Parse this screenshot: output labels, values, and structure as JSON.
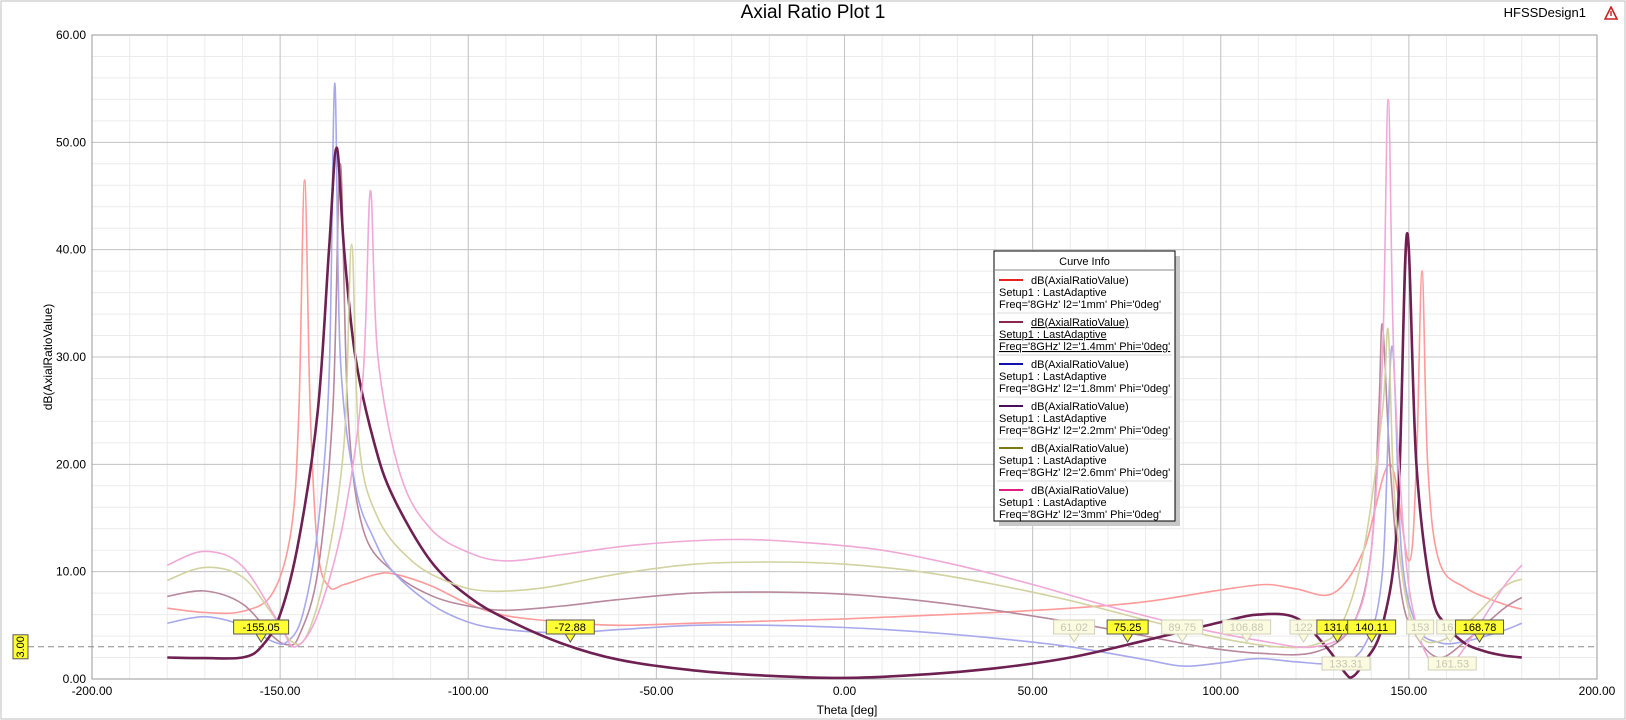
{
  "header": {
    "title": "Axial Ratio Plot 1",
    "design_name": "HFSSDesign1"
  },
  "legend": {
    "title": "Curve Info"
  },
  "chart_data": {
    "type": "line",
    "xlabel": "Theta [deg]",
    "ylabel": "dB(AxialRatioValue)",
    "xlim": [
      -200,
      200
    ],
    "ylim": [
      0,
      60
    ],
    "xticks": [
      -200,
      -150,
      -100,
      -50,
      0,
      50,
      100,
      150,
      200
    ],
    "yticks": [
      0,
      10,
      20,
      30,
      40,
      50,
      60
    ],
    "xtick_labels": [
      "-200.00",
      "-150.00",
      "-100.00",
      "-50.00",
      "0.00",
      "50.00",
      "100.00",
      "150.00",
      "200.00"
    ],
    "ytick_labels": [
      "0.00",
      "10.00",
      "20.00",
      "30.00",
      "40.00",
      "50.00",
      "60.00"
    ],
    "grid": true,
    "legend_position": "center-right",
    "reference_line": {
      "y": 3,
      "label": "3.00"
    },
    "series": [
      {
        "name": "dB(AxialRatioValue)",
        "setup": "Setup1 : LastAdaptive",
        "params": "Freq='8GHz' l2='1mm' Phi='0deg'",
        "color": "#ff9a9a",
        "points": [
          [
            -180,
            6.6
          ],
          [
            -170,
            6.2
          ],
          [
            -160,
            6.3
          ],
          [
            -152,
            8
          ],
          [
            -147,
            14
          ],
          [
            -145,
            25
          ],
          [
            -143.5,
            46.5
          ],
          [
            -142,
            25
          ],
          [
            -140,
            12
          ],
          [
            -137,
            8.6
          ],
          [
            -133,
            8.8
          ],
          [
            -125,
            9.7
          ],
          [
            -120,
            9.8
          ],
          [
            -110,
            8.7
          ],
          [
            -100,
            7
          ],
          [
            -90,
            5.9
          ],
          [
            -75,
            5.3
          ],
          [
            -60,
            5
          ],
          [
            -40,
            5.2
          ],
          [
            -20,
            5.4
          ],
          [
            0,
            5.6
          ],
          [
            20,
            5.9
          ],
          [
            40,
            6.2
          ],
          [
            60,
            6.6
          ],
          [
            80,
            7.2
          ],
          [
            100,
            8.3
          ],
          [
            112,
            8.8
          ],
          [
            120,
            8.4
          ],
          [
            130,
            8
          ],
          [
            138,
            12
          ],
          [
            145,
            20
          ],
          [
            150,
            11
          ],
          [
            152,
            20
          ],
          [
            153.5,
            38
          ],
          [
            155,
            20
          ],
          [
            158,
            11
          ],
          [
            165,
            8.5
          ],
          [
            175,
            7
          ],
          [
            180,
            6.5
          ]
        ]
      },
      {
        "name": "dB(AxialRatioValue)",
        "setup": "Setup1 : LastAdaptive",
        "params": "Freq='8GHz' l2='1.4mm' Phi='0deg'",
        "color": "#b8889c",
        "points": [
          [
            -180,
            7.7
          ],
          [
            -170,
            8.2
          ],
          [
            -160,
            7
          ],
          [
            -152,
            4
          ],
          [
            -148,
            3.2
          ],
          [
            -145,
            4
          ],
          [
            -140,
            10
          ],
          [
            -136,
            25
          ],
          [
            -134,
            48
          ],
          [
            -132,
            25
          ],
          [
            -128,
            14
          ],
          [
            -120,
            10
          ],
          [
            -110,
            7.8
          ],
          [
            -100,
            6.8
          ],
          [
            -90,
            6.4
          ],
          [
            -75,
            6.8
          ],
          [
            -60,
            7.4
          ],
          [
            -40,
            8
          ],
          [
            -20,
            8.1
          ],
          [
            0,
            7.9
          ],
          [
            20,
            7.3
          ],
          [
            40,
            6.4
          ],
          [
            60,
            5.3
          ],
          [
            80,
            4
          ],
          [
            95,
            3
          ],
          [
            110,
            2.4
          ],
          [
            125,
            2.5
          ],
          [
            135,
            5
          ],
          [
            140,
            12
          ],
          [
            142,
            25
          ],
          [
            143,
            33
          ],
          [
            145,
            20
          ],
          [
            148,
            8
          ],
          [
            152,
            4
          ],
          [
            158,
            2
          ],
          [
            165,
            3.5
          ],
          [
            175,
            6.5
          ],
          [
            180,
            7.6
          ]
        ]
      },
      {
        "name": "dB(AxialRatioValue)",
        "setup": "Setup1 : LastAdaptive",
        "params": "Freq='8GHz' l2='1.8mm' Phi='0deg'",
        "color": "#a8a8ec",
        "points": [
          [
            -180,
            5.2
          ],
          [
            -170,
            5.8
          ],
          [
            -160,
            5
          ],
          [
            -152,
            3.5
          ],
          [
            -148,
            3.5
          ],
          [
            -144,
            6
          ],
          [
            -140,
            14
          ],
          [
            -137,
            28
          ],
          [
            -135.5,
            55.5
          ],
          [
            -134,
            30
          ],
          [
            -130,
            18
          ],
          [
            -125,
            13
          ],
          [
            -120,
            10
          ],
          [
            -110,
            7
          ],
          [
            -100,
            5.3
          ],
          [
            -90,
            4.6
          ],
          [
            -75,
            4.3
          ],
          [
            -60,
            4.6
          ],
          [
            -40,
            5
          ],
          [
            -20,
            5
          ],
          [
            0,
            4.8
          ],
          [
            20,
            4.4
          ],
          [
            40,
            3.8
          ],
          [
            60,
            3
          ],
          [
            80,
            1.8
          ],
          [
            90,
            1.2
          ],
          [
            100,
            1.5
          ],
          [
            110,
            1.9
          ],
          [
            120,
            1.6
          ],
          [
            130,
            1.5
          ],
          [
            138,
            3
          ],
          [
            143,
            10
          ],
          [
            145.5,
            31
          ],
          [
            148,
            12
          ],
          [
            152,
            5
          ],
          [
            158,
            3.4
          ],
          [
            165,
            3.5
          ],
          [
            175,
            4.5
          ],
          [
            180,
            5.2
          ]
        ]
      },
      {
        "name": "dB(AxialRatioValue)",
        "setup": "Setup1 : LastAdaptive",
        "params": "Freq='8GHz' l2='2.2mm' Phi='0deg'",
        "color": "#6e2052",
        "points": [
          [
            -180,
            2
          ],
          [
            -170,
            1.95
          ],
          [
            -160,
            2
          ],
          [
            -155,
            3
          ],
          [
            -150,
            6
          ],
          [
            -145,
            13
          ],
          [
            -140,
            25
          ],
          [
            -137,
            40
          ],
          [
            -135,
            49.5
          ],
          [
            -133,
            40
          ],
          [
            -130,
            30
          ],
          [
            -125,
            22
          ],
          [
            -120,
            17
          ],
          [
            -110,
            11
          ],
          [
            -100,
            7.7
          ],
          [
            -90,
            5.6
          ],
          [
            -75,
            3.3
          ],
          [
            -60,
            1.8
          ],
          [
            -40,
            0.8
          ],
          [
            -20,
            0.3
          ],
          [
            0,
            0.1
          ],
          [
            20,
            0.4
          ],
          [
            40,
            1
          ],
          [
            60,
            2
          ],
          [
            80,
            3.6
          ],
          [
            100,
            5.3
          ],
          [
            110,
            6
          ],
          [
            120,
            5.7
          ],
          [
            128,
            3
          ],
          [
            133,
            0.6
          ],
          [
            135,
            0.2
          ],
          [
            138,
            1.5
          ],
          [
            143,
            5
          ],
          [
            147,
            15
          ],
          [
            149.5,
            41.5
          ],
          [
            152,
            20
          ],
          [
            156,
            8
          ],
          [
            160,
            5
          ],
          [
            165,
            3.3
          ],
          [
            170,
            2.6
          ],
          [
            175,
            2.2
          ],
          [
            180,
            2
          ]
        ]
      },
      {
        "name": "dB(AxialRatioValue)",
        "setup": "Setup1 : LastAdaptive",
        "params": "Freq='8GHz' l2='2.6mm' Phi='0deg'",
        "color": "#d2d2a0",
        "points": [
          [
            -180,
            9.2
          ],
          [
            -170,
            10.4
          ],
          [
            -160,
            9.5
          ],
          [
            -152,
            6
          ],
          [
            -147,
            3.5
          ],
          [
            -143,
            4
          ],
          [
            -138,
            10
          ],
          [
            -133,
            22
          ],
          [
            -131,
            40.5
          ],
          [
            -129,
            22
          ],
          [
            -124,
            15
          ],
          [
            -115,
            11
          ],
          [
            -105,
            9
          ],
          [
            -95,
            8.2
          ],
          [
            -80,
            8.5
          ],
          [
            -60,
            9.8
          ],
          [
            -40,
            10.7
          ],
          [
            -20,
            10.9
          ],
          [
            0,
            10.7
          ],
          [
            20,
            10
          ],
          [
            40,
            8.8
          ],
          [
            60,
            7.3
          ],
          [
            80,
            5.5
          ],
          [
            100,
            3.8
          ],
          [
            115,
            3
          ],
          [
            125,
            3.2
          ],
          [
            132,
            5
          ],
          [
            138,
            12
          ],
          [
            143,
            25
          ],
          [
            144.5,
            32.5
          ],
          [
            146,
            18
          ],
          [
            149,
            8
          ],
          [
            153,
            4
          ],
          [
            158,
            3.5
          ],
          [
            165,
            5
          ],
          [
            175,
            8.5
          ],
          [
            180,
            9.3
          ]
        ]
      },
      {
        "name": "dB(AxialRatioValue)",
        "setup": "Setup1 : LastAdaptive",
        "params": "Freq='8GHz' l2='3mm' Phi='0deg'",
        "color": "#f0a8d6",
        "points": [
          [
            -180,
            10.6
          ],
          [
            -170,
            11.9
          ],
          [
            -160,
            10.5
          ],
          [
            -150,
            5
          ],
          [
            -146,
            3
          ],
          [
            -140,
            6
          ],
          [
            -133,
            15
          ],
          [
            -128,
            28
          ],
          [
            -126,
            45.5
          ],
          [
            -124,
            30
          ],
          [
            -118,
            19
          ],
          [
            -110,
            14
          ],
          [
            -100,
            11.8
          ],
          [
            -90,
            11
          ],
          [
            -75,
            11.6
          ],
          [
            -55,
            12.5
          ],
          [
            -30,
            13
          ],
          [
            -10,
            12.7
          ],
          [
            10,
            12
          ],
          [
            30,
            10.6
          ],
          [
            50,
            8.8
          ],
          [
            70,
            6.8
          ],
          [
            90,
            5
          ],
          [
            110,
            3.6
          ],
          [
            125,
            3
          ],
          [
            135,
            5
          ],
          [
            140,
            12
          ],
          [
            143,
            30
          ],
          [
            144.5,
            54
          ],
          [
            146,
            30
          ],
          [
            149,
            12
          ],
          [
            152,
            5
          ],
          [
            156,
            1.5
          ],
          [
            160,
            1
          ],
          [
            165,
            3
          ],
          [
            175,
            8.5
          ],
          [
            180,
            10.6
          ]
        ]
      }
    ],
    "markers": [
      {
        "label": "-155.05",
        "x": -155.05,
        "bright": true
      },
      {
        "label": "-72.88",
        "x": -72.88,
        "bright": true
      },
      {
        "label": "61.02",
        "x": 61.02,
        "bright": false
      },
      {
        "label": "75.25",
        "x": 75.25,
        "bright": true
      },
      {
        "label": "89.75",
        "x": 89.75,
        "bright": false
      },
      {
        "label": "106.88",
        "x": 106.88,
        "bright": false
      },
      {
        "label": "122",
        "x": 122,
        "bright": false
      },
      {
        "label": "131.0",
        "x": 131.0,
        "bright": true
      },
      {
        "label": "140.11",
        "x": 140.11,
        "bright": true
      },
      {
        "label": "153",
        "x": 153,
        "bright": false
      },
      {
        "label": "161",
        "x": 161,
        "bright": false
      },
      {
        "label": "168.78",
        "x": 168.78,
        "bright": true
      },
      {
        "label": "133.31",
        "x": 133.31,
        "bright": false,
        "below": true
      },
      {
        "label": "161.53",
        "x": 161.53,
        "bright": false,
        "below": true
      }
    ]
  }
}
